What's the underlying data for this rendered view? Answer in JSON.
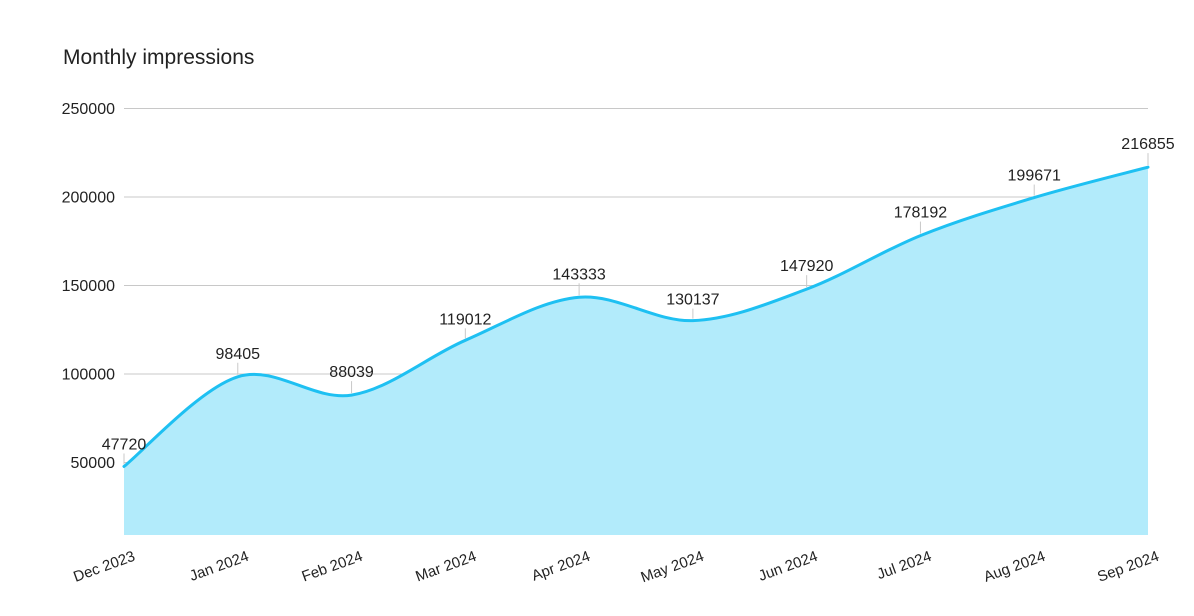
{
  "chart_data": {
    "type": "area",
    "title": "Monthly impressions",
    "categories": [
      "Dec 2023",
      "Jan 2024",
      "Feb 2024",
      "Mar 2024",
      "Apr 2024",
      "May 2024",
      "Jun 2024",
      "Jul 2024",
      "Aug 2024",
      "Sep 2024"
    ],
    "series": [
      {
        "values": [
          47720,
          98405,
          88039,
          119012,
          143333,
          130137,
          147920,
          178192,
          199671,
          216855
        ]
      }
    ],
    "yticks": [
      "50000",
      "100000",
      "150000",
      "200000",
      "250000"
    ],
    "ylim": [
      9000,
      250000
    ],
    "grid": true,
    "data_labels": true,
    "colors": {
      "line": "#1ec0f2",
      "fill": "#b2ebfb"
    }
  }
}
